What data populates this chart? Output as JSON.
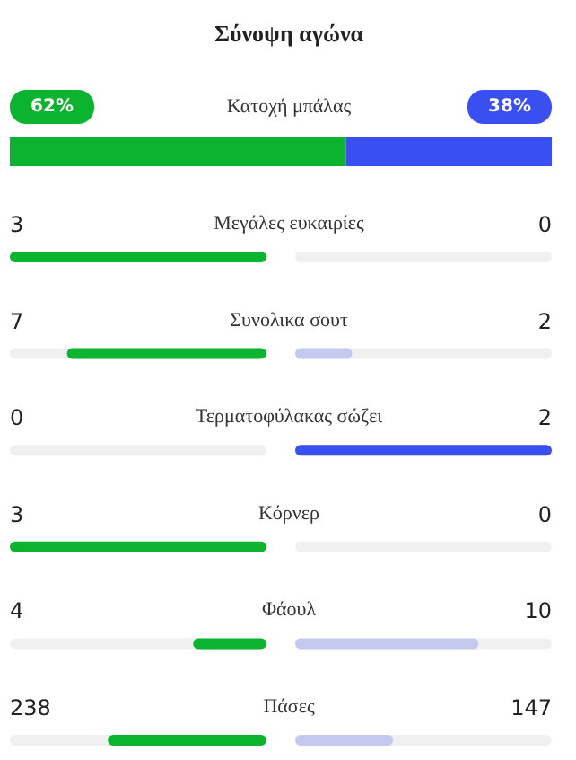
{
  "chart_data": {
    "type": "other",
    "title": "Σύνοψη αγώνα",
    "categories": [
      "Κατοχή μπάλας",
      "Μεγάλες ευκαιρίες",
      "Συνολικα σουτ",
      "Τερματοφύλακας σώζει",
      "Κόρνερ",
      "Φάουλ",
      "Πάσες"
    ],
    "series": [
      {
        "values": [
          62,
          3,
          7,
          0,
          3,
          4,
          238
        ],
        "value_labels": [
          "62%",
          "3",
          "7",
          "0",
          "3",
          "4",
          "238"
        ],
        "colors": [
          "#0bb32f",
          "#0bb32f",
          "#0bb32f",
          "#0bb32f",
          "#0bb32f",
          "#0bb32f",
          "#0bb32f"
        ]
      },
      {
        "values": [
          38,
          0,
          2,
          2,
          0,
          10,
          147
        ],
        "value_labels": [
          "38%",
          "0",
          "2",
          "2",
          "0",
          "10",
          "147"
        ],
        "colors": [
          "#3a4ff0",
          "#3a4ff0",
          "#c5c9f0",
          "#3a4ff0",
          "#3a4ff0",
          "#c5c9f0",
          "#c5c9f0"
        ]
      }
    ]
  }
}
